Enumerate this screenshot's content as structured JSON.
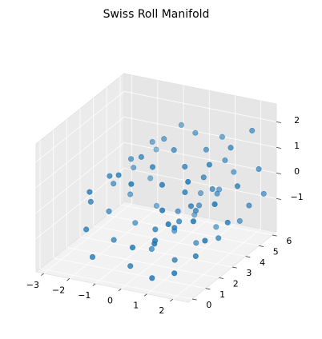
{
  "chart_data": {
    "type": "scatter3d",
    "title": "Swiss Roll Manifold",
    "color": "#1f77b4",
    "grid": true,
    "x": [
      0.08,
      0.08,
      0.08,
      0.08,
      0.59,
      0.59,
      0.59,
      0.59,
      1.03,
      1.03,
      1.03,
      1.03,
      1.26,
      1.26,
      1.26,
      1.26,
      1.18,
      1.18,
      1.18,
      1.18,
      0.76,
      0.76,
      0.76,
      0.76,
      0.08,
      0.08,
      0.08,
      0.08,
      -0.72,
      -0.72,
      -0.72,
      -0.72,
      -1.43,
      -1.43,
      -1.43,
      -1.43,
      -1.85,
      -1.85,
      -1.85,
      -1.85,
      -1.82,
      -1.82,
      -1.82,
      -1.82,
      -1.37,
      -1.37,
      -1.37,
      -1.37,
      -0.42,
      -0.42,
      -0.42,
      -0.42,
      0.68,
      0.68,
      0.68,
      0.68,
      1.7,
      1.7,
      1.7,
      1.7,
      2.37,
      2.37,
      2.37,
      2.37,
      2.49,
      2.49,
      2.49,
      2.49,
      1.97,
      1.97,
      1.97,
      1.97
    ],
    "y": [
      0.4,
      2.1,
      3.8,
      5.5,
      1.1,
      2.9,
      4.4,
      5.9,
      0.2,
      1.7,
      3.3,
      4.9,
      0.8,
      2.5,
      4.1,
      5.7,
      0.5,
      2.2,
      3.6,
      5.2,
      1.3,
      3.0,
      4.6,
      5.8,
      0.3,
      1.9,
      3.5,
      5.1,
      0.9,
      2.6,
      4.3,
      5.6,
      0.1,
      1.6,
      3.2,
      4.8,
      1.0,
      2.7,
      4.2,
      5.9,
      0.6,
      2.3,
      3.9,
      5.4,
      0.2,
      1.8,
      3.4,
      5.0,
      1.2,
      2.8,
      4.5,
      6.0,
      0.7,
      2.4,
      4.0,
      5.5,
      0.4,
      2.0,
      3.7,
      5.3,
      1.4,
      3.1,
      4.7,
      5.8,
      0.3,
      1.9,
      3.6,
      5.2,
      0.9,
      2.5,
      4.1,
      5.7
    ],
    "z": [
      -0.96,
      -0.96,
      -0.96,
      -0.96,
      -0.88,
      -0.88,
      -0.88,
      -0.88,
      -0.54,
      -0.54,
      -0.54,
      -0.54,
      0.02,
      0.02,
      0.02,
      0.02,
      0.67,
      0.67,
      0.67,
      0.67,
      1.25,
      1.25,
      1.25,
      1.25,
      1.56,
      1.56,
      1.56,
      1.56,
      1.5,
      1.5,
      1.5,
      1.5,
      1.03,
      1.03,
      1.03,
      1.03,
      0.19,
      0.19,
      0.19,
      0.19,
      -0.72,
      -0.72,
      -0.72,
      -0.72,
      -1.54,
      -1.54,
      -1.54,
      -1.54,
      -2.12,
      -2.12,
      -2.12,
      -2.12,
      -2.16,
      -2.16,
      -2.16,
      -2.16,
      -1.64,
      -1.64,
      -1.64,
      -1.64,
      -0.65,
      -0.65,
      -0.65,
      -0.65,
      0.59,
      0.59,
      0.59,
      0.59,
      1.78,
      1.78,
      1.78,
      1.78
    ],
    "xlim": [
      -3.3,
      2.6
    ],
    "ylim": [
      -0.3,
      6.3
    ],
    "zlim": [
      -2.3,
      2.7
    ],
    "xticks": [
      {
        "value": -3,
        "label": "−3"
      },
      {
        "value": -2,
        "label": "−2"
      },
      {
        "value": -1,
        "label": "−1"
      },
      0,
      1,
      2
    ],
    "yticks": [
      0,
      1,
      2,
      3,
      4,
      5,
      6
    ],
    "zticks": [
      {
        "value": -1,
        "label": "−1"
      },
      0,
      1,
      2
    ]
  }
}
